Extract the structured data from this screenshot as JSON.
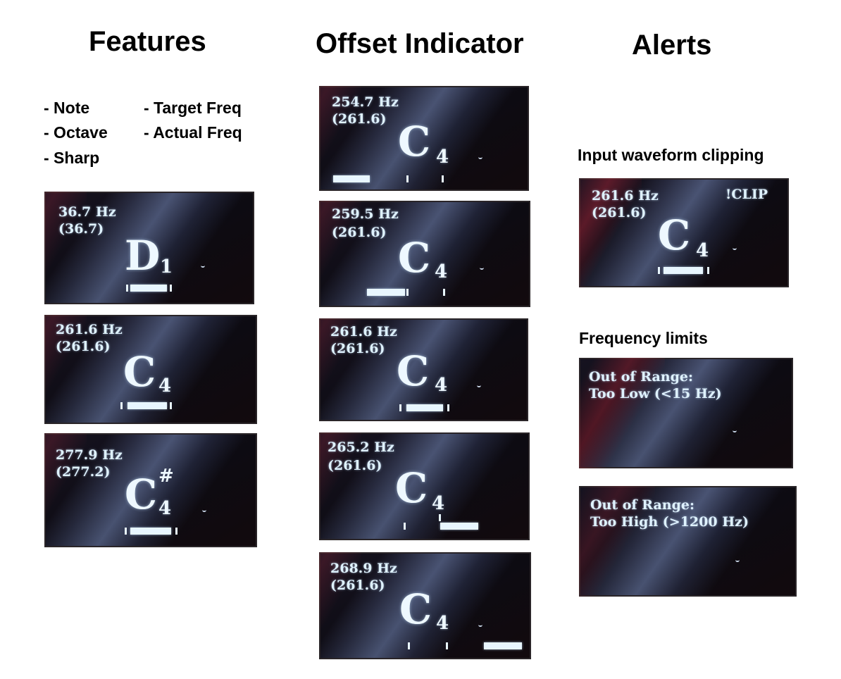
{
  "headings": {
    "features": "Features",
    "offset": "Offset Indicator",
    "alerts": "Alerts"
  },
  "features_list": [
    "- Note",
    "- Octave",
    "- Sharp",
    "- Target Freq",
    "- Actual Freq"
  ],
  "alert_labels": {
    "clipping": "Input waveform clipping",
    "limits": "Frequency limits"
  },
  "feature_screens": [
    {
      "freq": "36.7 Hz",
      "target": "(36.7)",
      "note": "D",
      "octave": "1",
      "sharp": ""
    },
    {
      "freq": "261.6 Hz",
      "target": "(261.6)",
      "note": "C",
      "octave": "4",
      "sharp": ""
    },
    {
      "freq": "277.9 Hz",
      "target": "(277.2)",
      "note": "C",
      "octave": "4",
      "sharp": "#"
    }
  ],
  "offset_screens": [
    {
      "freq": "254.7 Hz",
      "target": "(261.6)",
      "note": "C",
      "octave": "4"
    },
    {
      "freq": "259.5 Hz",
      "target": "(261.6)",
      "note": "C",
      "octave": "4"
    },
    {
      "freq": "261.6 Hz",
      "target": "(261.6)",
      "note": "C",
      "octave": "4"
    },
    {
      "freq": "265.2 Hz",
      "target": "(261.6)",
      "note": "C",
      "octave": "4"
    },
    {
      "freq": "268.9 Hz",
      "target": "(261.6)",
      "note": "C",
      "octave": "4"
    }
  ],
  "clip_screen": {
    "freq": "261.6 Hz",
    "target": "(261.6)",
    "note": "C",
    "octave": "4",
    "badge": "!CLIP"
  },
  "range_screens": [
    {
      "line1": "Out of Range:",
      "line2": "Too Low (<15 Hz)"
    },
    {
      "line1": "Out of Range:",
      "line2": "Too High (>1200 Hz)"
    }
  ],
  "colors": {
    "oled_text": "#dff2ff",
    "background": "#ffffff"
  }
}
